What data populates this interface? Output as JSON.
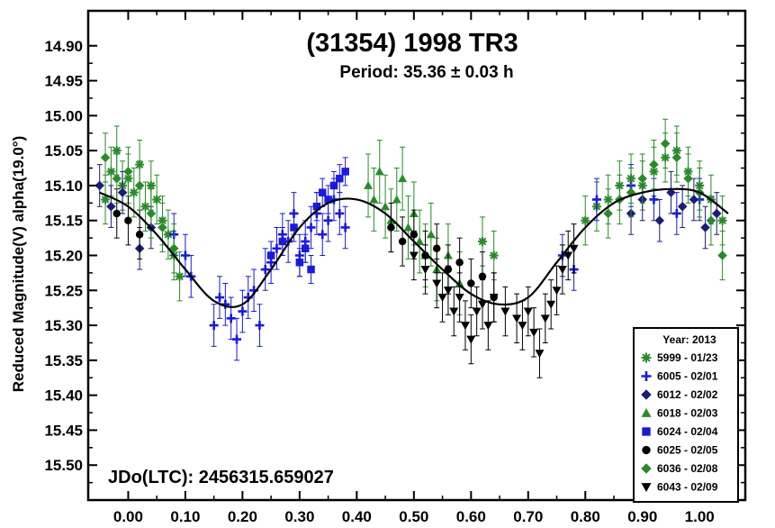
{
  "chart_data": {
    "type": "scatter",
    "title": "(31354) 1998 TR3",
    "subtitle": "Period: 35.36 ± 0.03 h",
    "annotation": "JDo(LTC): 2456315.659027",
    "xlabel": "",
    "ylabel": "Reduced Magnitude(V) alpha(19.0°)",
    "xlim": [
      -0.07,
      1.08
    ],
    "ylim": [
      14.85,
      15.55
    ],
    "y_inverted": true,
    "x_ticks": [
      "0.00",
      "0.10",
      "0.20",
      "0.30",
      "0.40",
      "0.50",
      "0.60",
      "0.70",
      "0.80",
      "0.90",
      "1.00"
    ],
    "y_ticks": [
      "14.90",
      "14.95",
      "15.00",
      "15.05",
      "15.10",
      "15.15",
      "15.20",
      "15.25",
      "15.30",
      "15.35",
      "15.40",
      "15.45",
      "15.50"
    ],
    "grid": false,
    "legend": {
      "title": "Year: 2013",
      "position": "bottom-right",
      "entries": [
        {
          "label": "5999 - 01/23",
          "marker": "asterisk",
          "color": "#2a8a2a"
        },
        {
          "label": "6005 - 02/01",
          "marker": "plus",
          "color": "#1a1adc"
        },
        {
          "label": "6012 - 02/02",
          "marker": "diamond",
          "color": "#1c1c7a"
        },
        {
          "label": "6018 - 02/03",
          "marker": "triangle-up",
          "color": "#2a8a2a"
        },
        {
          "label": "6024 - 02/04",
          "marker": "square",
          "color": "#1a1adc"
        },
        {
          "label": "6025 - 02/05",
          "marker": "circle",
          "color": "#000000"
        },
        {
          "label": "6036 - 02/08",
          "marker": "diamond",
          "color": "#2a8a2a"
        },
        {
          "label": "6043 - 02/09",
          "marker": "triangle-down",
          "color": "#000000"
        }
      ]
    },
    "fit_curve": {
      "name": "",
      "x": [
        -0.05,
        0.0,
        0.05,
        0.1,
        0.15,
        0.2,
        0.25,
        0.3,
        0.35,
        0.4,
        0.45,
        0.5,
        0.55,
        0.6,
        0.65,
        0.7,
        0.75,
        0.8,
        0.85,
        0.9,
        0.95,
        1.0,
        1.05
      ],
      "y": [
        15.11,
        15.13,
        15.17,
        15.22,
        15.265,
        15.27,
        15.22,
        15.16,
        15.125,
        15.12,
        15.14,
        15.18,
        15.22,
        15.255,
        15.27,
        15.26,
        15.21,
        15.16,
        15.125,
        15.11,
        15.105,
        15.11,
        15.14
      ]
    },
    "series": [
      {
        "name": "5999 - 01/23",
        "points": [
          [
            -0.04,
            15.12
          ],
          [
            -0.03,
            15.08
          ],
          [
            -0.02,
            15.05
          ],
          [
            -0.01,
            15.1
          ],
          [
            0.0,
            15.09
          ],
          [
            0.01,
            15.11
          ],
          [
            0.02,
            15.07
          ],
          [
            0.03,
            15.13
          ],
          [
            0.04,
            15.1
          ],
          [
            0.05,
            15.12
          ],
          [
            0.06,
            15.15
          ],
          [
            0.07,
            15.17
          ],
          [
            0.08,
            15.2
          ],
          [
            0.09,
            15.23
          ],
          [
            0.62,
            15.18
          ],
          [
            0.64,
            15.2
          ],
          [
            0.8,
            15.15
          ],
          [
            0.82,
            15.13
          ],
          [
            0.84,
            15.12
          ],
          [
            0.86,
            15.1
          ],
          [
            0.88,
            15.09
          ],
          [
            0.9,
            15.1
          ],
          [
            0.92,
            15.08
          ],
          [
            0.94,
            15.06
          ],
          [
            0.96,
            15.05
          ],
          [
            0.98,
            15.08
          ],
          [
            1.0,
            15.1
          ],
          [
            1.02,
            15.12
          ],
          [
            1.04,
            15.15
          ]
        ],
        "err": 0.035
      },
      {
        "name": "6005 - 02/01",
        "points": [
          [
            0.08,
            15.17
          ],
          [
            0.1,
            15.2
          ],
          [
            0.11,
            15.23
          ],
          [
            0.15,
            15.3
          ],
          [
            0.16,
            15.26
          ],
          [
            0.17,
            15.27
          ],
          [
            0.18,
            15.29
          ],
          [
            0.19,
            15.32
          ],
          [
            0.2,
            15.28
          ],
          [
            0.21,
            15.26
          ],
          [
            0.22,
            15.25
          ],
          [
            0.23,
            15.3
          ],
          [
            0.24,
            15.22
          ],
          [
            0.25,
            15.21
          ],
          [
            0.26,
            15.19
          ],
          [
            0.27,
            15.17
          ],
          [
            0.28,
            15.18
          ],
          [
            0.29,
            15.14
          ],
          [
            0.3,
            15.2
          ],
          [
            0.31,
            15.18
          ],
          [
            0.32,
            15.16
          ],
          [
            0.33,
            15.14
          ],
          [
            0.34,
            15.17
          ],
          [
            0.35,
            15.15
          ],
          [
            0.36,
            15.12
          ],
          [
            0.37,
            15.14
          ],
          [
            0.38,
            15.16
          ],
          [
            0.76,
            15.2
          ],
          [
            0.78,
            15.22
          ],
          [
            0.82,
            15.12
          ],
          [
            0.88,
            15.1
          ],
          [
            0.92,
            15.12
          ],
          [
            0.96,
            15.14
          ],
          [
            1.0,
            15.12
          ]
        ],
        "err": 0.03
      },
      {
        "name": "6012 - 02/02",
        "points": [
          [
            -0.05,
            15.1
          ],
          [
            -0.03,
            15.13
          ],
          [
            -0.01,
            15.11
          ],
          [
            0.02,
            15.19
          ],
          [
            0.04,
            15.16
          ],
          [
            0.88,
            15.14
          ],
          [
            0.9,
            15.12
          ],
          [
            0.93,
            15.15
          ],
          [
            0.95,
            15.11
          ],
          [
            0.97,
            15.13
          ],
          [
            0.99,
            15.12
          ],
          [
            1.01,
            15.16
          ],
          [
            1.03,
            15.14
          ]
        ],
        "err": 0.03
      },
      {
        "name": "6018 - 02/03",
        "points": [
          [
            0.42,
            15.1
          ],
          [
            0.43,
            15.12
          ],
          [
            0.44,
            15.08
          ],
          [
            0.45,
            15.13
          ],
          [
            0.46,
            15.15
          ],
          [
            0.47,
            15.12
          ],
          [
            0.48,
            15.09
          ],
          [
            0.49,
            15.16
          ],
          [
            0.5,
            15.14
          ],
          [
            0.51,
            15.18
          ],
          [
            0.52,
            15.2
          ],
          [
            0.53,
            15.17
          ],
          [
            0.54,
            15.22
          ],
          [
            0.56,
            15.2
          ],
          [
            0.58,
            15.24
          ]
        ],
        "err": 0.045
      },
      {
        "name": "6024 - 02/04",
        "points": [
          [
            0.25,
            15.2
          ],
          [
            0.27,
            15.18
          ],
          [
            0.29,
            15.16
          ],
          [
            0.3,
            15.21
          ],
          [
            0.31,
            15.19
          ],
          [
            0.32,
            15.22
          ],
          [
            0.33,
            15.13
          ],
          [
            0.34,
            15.11
          ],
          [
            0.35,
            15.12
          ],
          [
            0.36,
            15.1
          ],
          [
            0.37,
            15.09
          ],
          [
            0.38,
            15.08
          ]
        ],
        "err": 0.02
      },
      {
        "name": "6025 - 02/05",
        "points": [
          [
            0.46,
            15.16
          ],
          [
            0.48,
            15.18
          ],
          [
            0.5,
            15.17
          ],
          [
            0.52,
            15.2
          ],
          [
            0.54,
            15.19
          ],
          [
            0.56,
            15.22
          ],
          [
            0.58,
            15.21
          ],
          [
            0.6,
            15.24
          ],
          [
            0.62,
            15.23
          ],
          [
            0.64,
            15.26
          ],
          [
            -0.02,
            15.14
          ],
          [
            0.0,
            15.15
          ],
          [
            0.02,
            15.17
          ]
        ],
        "err": 0.035
      },
      {
        "name": "6036 - 02/08",
        "points": [
          [
            -0.04,
            15.06
          ],
          [
            -0.02,
            15.09
          ],
          [
            0.0,
            15.08
          ],
          [
            0.02,
            15.1
          ],
          [
            0.04,
            15.14
          ],
          [
            0.06,
            15.16
          ],
          [
            0.08,
            15.19
          ],
          [
            0.84,
            15.14
          ],
          [
            0.86,
            15.12
          ],
          [
            0.88,
            15.11
          ],
          [
            0.9,
            15.09
          ],
          [
            0.92,
            15.07
          ],
          [
            0.94,
            15.04
          ],
          [
            0.96,
            15.06
          ],
          [
            0.98,
            15.09
          ],
          [
            1.0,
            15.11
          ],
          [
            1.02,
            15.15
          ],
          [
            1.04,
            15.2
          ]
        ],
        "err": 0.035
      },
      {
        "name": "6043 - 02/09",
        "points": [
          [
            0.5,
            15.2
          ],
          [
            0.52,
            15.22
          ],
          [
            0.54,
            15.24
          ],
          [
            0.55,
            15.26
          ],
          [
            0.56,
            15.25
          ],
          [
            0.57,
            15.28
          ],
          [
            0.58,
            15.26
          ],
          [
            0.59,
            15.3
          ],
          [
            0.6,
            15.32
          ],
          [
            0.61,
            15.28
          ],
          [
            0.62,
            15.27
          ],
          [
            0.63,
            15.3
          ],
          [
            0.64,
            15.26
          ],
          [
            0.66,
            15.28
          ],
          [
            0.68,
            15.29
          ],
          [
            0.69,
            15.3
          ],
          [
            0.7,
            15.28
          ],
          [
            0.71,
            15.31
          ],
          [
            0.72,
            15.34
          ],
          [
            0.73,
            15.29
          ],
          [
            0.74,
            15.27
          ],
          [
            0.75,
            15.25
          ],
          [
            0.76,
            15.22
          ],
          [
            0.77,
            15.2
          ],
          [
            0.78,
            15.19
          ]
        ],
        "err": 0.035
      }
    ]
  }
}
